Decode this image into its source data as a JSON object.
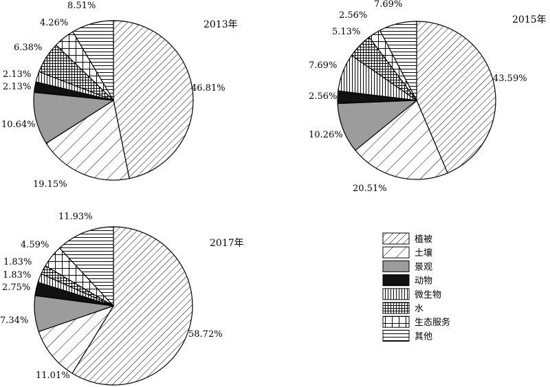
{
  "legend": [
    {
      "key": "vegetation",
      "label": "植被"
    },
    {
      "key": "soil",
      "label": "土壤"
    },
    {
      "key": "landscape",
      "label": "景观"
    },
    {
      "key": "animal",
      "label": "动物"
    },
    {
      "key": "microbe",
      "label": "微生物"
    },
    {
      "key": "water",
      "label": "水"
    },
    {
      "key": "eco_service",
      "label": "生态服务"
    },
    {
      "key": "other",
      "label": "其他"
    }
  ],
  "chart_data": [
    {
      "type": "pie",
      "title": "2013年",
      "slices": [
        {
          "key": "vegetation",
          "value": 46.81,
          "label": "46.81%"
        },
        {
          "key": "soil",
          "value": 19.15,
          "label": "19.15%"
        },
        {
          "key": "landscape",
          "value": 10.64,
          "label": "10.64%"
        },
        {
          "key": "animal",
          "value": 2.13,
          "label": "2.13%"
        },
        {
          "key": "microbe",
          "value": 2.13,
          "label": "2.13%"
        },
        {
          "key": "water",
          "value": 6.38,
          "label": "6.38%"
        },
        {
          "key": "eco_service",
          "value": 4.26,
          "label": "4.26%"
        },
        {
          "key": "other",
          "value": 8.51,
          "label": "8.51%"
        }
      ]
    },
    {
      "type": "pie",
      "title": "2015年",
      "slices": [
        {
          "key": "vegetation",
          "value": 43.59,
          "label": "43.59%"
        },
        {
          "key": "soil",
          "value": 20.51,
          "label": "20.51%"
        },
        {
          "key": "landscape",
          "value": 10.26,
          "label": "10.26%"
        },
        {
          "key": "animal",
          "value": 2.56,
          "label": "2.56%"
        },
        {
          "key": "microbe",
          "value": 7.69,
          "label": "7.69%"
        },
        {
          "key": "water",
          "value": 5.13,
          "label": "5.13%"
        },
        {
          "key": "eco_service",
          "value": 2.56,
          "label": "2.56%"
        },
        {
          "key": "other",
          "value": 7.69,
          "label": "7.69%"
        }
      ]
    },
    {
      "type": "pie",
      "title": "2017年",
      "slices": [
        {
          "key": "vegetation",
          "value": 58.72,
          "label": "58.72%"
        },
        {
          "key": "soil",
          "value": 11.01,
          "label": "11.01%"
        },
        {
          "key": "landscape",
          "value": 7.34,
          "label": "7.34%"
        },
        {
          "key": "animal",
          "value": 2.75,
          "label": "2.75%"
        },
        {
          "key": "microbe",
          "value": 1.83,
          "label": "1.83%"
        },
        {
          "key": "water",
          "value": 1.83,
          "label": "1.83%"
        },
        {
          "key": "eco_service",
          "value": 4.59,
          "label": "4.59%"
        },
        {
          "key": "other",
          "value": 11.93,
          "label": "11.93%"
        }
      ]
    }
  ]
}
